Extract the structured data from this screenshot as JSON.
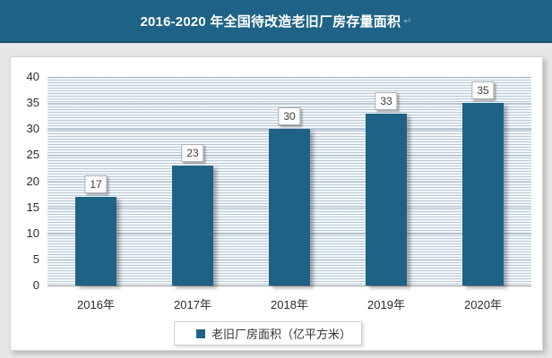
{
  "header": {
    "title": "2016-2020 年全国待改造老旧厂房存量面积",
    "artifact": "↵"
  },
  "legend": {
    "label": "老旧厂房面积（亿平方米）"
  },
  "chart_data": {
    "type": "bar",
    "title": "2016-2020 年全国待改造老旧厂房存量面积",
    "categories": [
      "2016年",
      "2017年",
      "2018年",
      "2019年",
      "2020年"
    ],
    "values": [
      17,
      23,
      30,
      33,
      35
    ],
    "series_name": "老旧厂房面积（亿平方米）",
    "xlabel": "",
    "ylabel": "",
    "ylim": [
      0,
      40
    ],
    "yticks": [
      0,
      5,
      10,
      15,
      20,
      25,
      30,
      35,
      40
    ],
    "grid": "fine horizontal pinstripes with major lines every 5 units",
    "legend_position": "bottom",
    "data_labels": true,
    "colors": {
      "bar": "#1e6387",
      "title_bar_bg": "#1e6387",
      "title_bar_border": "#14506e",
      "title_text": "#ffffff",
      "panel_bg": "#ffffff",
      "page_bg": "#e7e7e7",
      "plot_bg": "#f3f7fa",
      "stripe_line": "#aabecf",
      "axis_line": "#9b9b9b",
      "label_text": "#2b2b2b"
    }
  }
}
